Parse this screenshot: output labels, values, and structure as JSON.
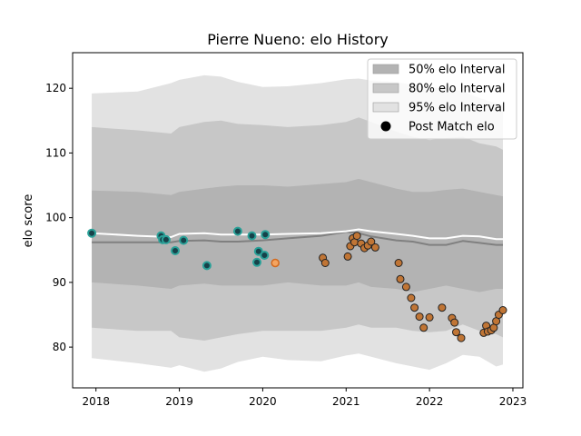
{
  "chart_data": {
    "type": "scatter",
    "title": "Pierre Nueno: elo History",
    "xlabel": "",
    "ylabel": "elo score",
    "xlim": [
      2017.72,
      2023.12
    ],
    "ylim": [
      73.7,
      125.5
    ],
    "x_ticks": [
      2018,
      2019,
      2020,
      2021,
      2022,
      2023
    ],
    "y_ticks": [
      80,
      90,
      100,
      110,
      120
    ],
    "grid": false,
    "legend_position": "top-right",
    "colors": {
      "band50": "#b3b3b3",
      "band80": "#c7c7c7",
      "band95": "#e2e2e2",
      "median_line": "#808080",
      "mean_line": "#ffffff",
      "teal_face": "#17424a",
      "teal_edge": "#2aa198",
      "orange_face": "#c07535",
      "orange_edge": "#222222",
      "highlight_face": "#f4a460",
      "highlight_edge": "#d2691e"
    },
    "legend": [
      {
        "label": "50% elo Interval",
        "kind": "band50"
      },
      {
        "label": "80% elo Interval",
        "kind": "band80"
      },
      {
        "label": "95% elo Interval",
        "kind": "band95"
      },
      {
        "label": "Post Match elo",
        "kind": "marker"
      }
    ],
    "band_x": [
      2017.95,
      2018.5,
      2018.9,
      2019.0,
      2019.3,
      2019.5,
      2019.7,
      2020.0,
      2020.3,
      2020.7,
      2021.0,
      2021.15,
      2021.3,
      2021.6,
      2021.8,
      2022.0,
      2022.2,
      2022.4,
      2022.6,
      2022.8,
      2022.88
    ],
    "band95_upper": [
      119.2,
      119.5,
      120.8,
      121.3,
      122.0,
      121.8,
      121.0,
      120.2,
      120.3,
      120.8,
      121.4,
      121.5,
      121.2,
      121.0,
      120.5,
      120.2,
      120.0,
      119.5,
      118.5,
      117.7,
      117.5
    ],
    "band95_lower": [
      78.3,
      77.5,
      76.8,
      77.2,
      76.2,
      76.7,
      77.7,
      78.5,
      78.0,
      77.8,
      78.7,
      79.0,
      78.5,
      77.5,
      77.0,
      76.5,
      77.5,
      78.8,
      78.5,
      77.0,
      77.3
    ],
    "band80_upper": [
      114.0,
      113.5,
      113.0,
      114.0,
      114.8,
      115.0,
      114.5,
      114.3,
      114.0,
      114.3,
      114.8,
      115.5,
      114.8,
      113.3,
      112.5,
      112.0,
      112.3,
      112.5,
      111.5,
      111.0,
      110.5
    ],
    "band80_lower": [
      83.0,
      82.5,
      82.5,
      81.5,
      81.0,
      81.5,
      82.0,
      82.5,
      82.5,
      82.5,
      83.0,
      83.5,
      83.0,
      83.0,
      82.5,
      82.3,
      82.5,
      83.5,
      82.5,
      82.0,
      81.5
    ],
    "band50_upper": [
      104.2,
      104.0,
      103.5,
      104.0,
      104.5,
      104.8,
      105.0,
      105.0,
      104.8,
      105.2,
      105.5,
      106.0,
      105.5,
      104.5,
      104.0,
      104.0,
      104.3,
      104.5,
      104.0,
      103.5,
      103.3
    ],
    "band50_lower": [
      90.0,
      89.5,
      89.0,
      89.5,
      89.8,
      89.5,
      89.5,
      89.5,
      90.0,
      89.5,
      89.5,
      90.0,
      89.3,
      89.0,
      88.5,
      89.0,
      89.5,
      89.0,
      88.5,
      89.0,
      89.0
    ],
    "median_line": [
      96.2,
      96.2,
      96.2,
      96.4,
      96.5,
      96.3,
      96.3,
      96.5,
      96.8,
      97.2,
      97.8,
      97.6,
      97.1,
      96.5,
      96.3,
      95.8,
      95.8,
      96.4,
      96.1,
      95.8,
      95.8
    ],
    "mean_line": [
      97.6,
      97.2,
      97.0,
      97.5,
      97.6,
      97.4,
      97.4,
      97.4,
      97.5,
      97.6,
      97.9,
      98.2,
      97.9,
      97.5,
      97.2,
      96.8,
      96.8,
      97.2,
      97.1,
      96.7,
      96.7
    ],
    "points_teal": {
      "x": [
        2017.95,
        2018.78,
        2018.8,
        2018.84,
        2018.95,
        2019.05,
        2019.33,
        2019.7,
        2019.87,
        2019.93,
        2019.95,
        2020.02,
        2020.03
      ],
      "y": [
        97.6,
        97.2,
        96.6,
        96.6,
        94.9,
        96.5,
        92.6,
        97.9,
        97.2,
        93.1,
        94.8,
        94.2,
        97.4
      ]
    },
    "points_orange": {
      "x": [
        2020.72,
        2020.75,
        2021.02,
        2021.05,
        2021.08,
        2021.1,
        2021.13,
        2021.18,
        2021.22,
        2021.26,
        2021.3,
        2021.35,
        2021.63,
        2021.65,
        2021.72,
        2021.78,
        2021.82,
        2021.88,
        2021.93,
        2022.0,
        2022.15,
        2022.27,
        2022.3,
        2022.32,
        2022.38,
        2022.65,
        2022.68,
        2022.7,
        2022.74,
        2022.77,
        2022.8,
        2022.83,
        2022.88
      ],
      "y": [
        93.8,
        93.0,
        94.0,
        95.6,
        96.8,
        96.2,
        97.2,
        96.0,
        95.3,
        95.7,
        96.3,
        95.4,
        93.0,
        90.5,
        89.3,
        87.6,
        86.1,
        84.7,
        83.0,
        84.6,
        86.1,
        84.5,
        83.8,
        82.3,
        81.4,
        82.2,
        83.3,
        82.4,
        82.6,
        83.0,
        84.0,
        85.0,
        85.7
      ]
    },
    "points_highlight": {
      "x": [
        2020.15
      ],
      "y": [
        93.0
      ]
    }
  }
}
